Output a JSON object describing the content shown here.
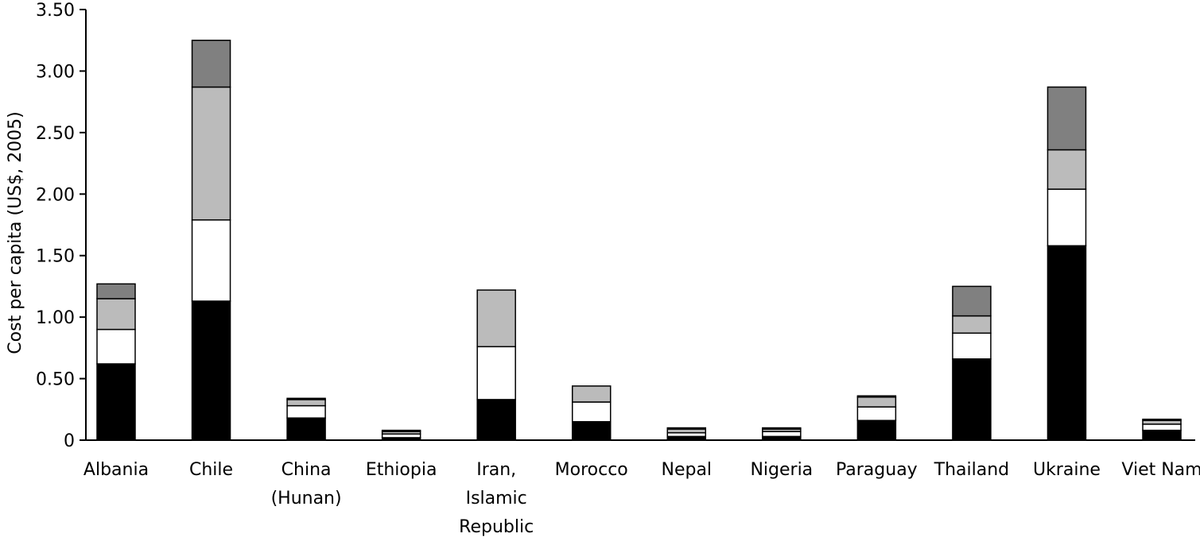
{
  "chart_data": {
    "type": "bar",
    "stacked": true,
    "title": "",
    "xlabel": "",
    "ylabel": "Cost per capita (US$, 2005)",
    "ylim": [
      0,
      3.5
    ],
    "yticks": [
      0,
      0.5,
      1.0,
      1.5,
      2.0,
      2.5,
      3.0,
      3.5
    ],
    "ytick_labels": [
      "0",
      "0.50",
      "1.00",
      "1.50",
      "2.00",
      "2.50",
      "3.00",
      "3.50"
    ],
    "legend": "none",
    "grid": false,
    "categories": [
      [
        "Albania"
      ],
      [
        "Chile"
      ],
      [
        "China",
        "(Hunan)"
      ],
      [
        "Ethiopia"
      ],
      [
        "Iran,",
        "Islamic",
        "Republic"
      ],
      [
        "Morocco"
      ],
      [
        "Nepal"
      ],
      [
        "Nigeria"
      ],
      [
        "Paraguay"
      ],
      [
        "Thailand"
      ],
      [
        "Ukraine"
      ],
      [
        "Viet Nam"
      ]
    ],
    "series": [
      {
        "color": "#000000",
        "values": [
          0.62,
          1.13,
          0.18,
          0.02,
          0.33,
          0.15,
          0.03,
          0.03,
          0.16,
          0.66,
          1.58,
          0.08
        ]
      },
      {
        "color": "#ffffff",
        "values": [
          0.28,
          0.66,
          0.1,
          0.03,
          0.43,
          0.16,
          0.03,
          0.04,
          0.11,
          0.21,
          0.46,
          0.05
        ]
      },
      {
        "color": "#bbbbbb",
        "values": [
          0.25,
          1.08,
          0.05,
          0.02,
          0.46,
          0.13,
          0.03,
          0.02,
          0.08,
          0.14,
          0.32,
          0.03
        ]
      },
      {
        "color": "#808080",
        "values": [
          0.12,
          0.38,
          0.01,
          0.01,
          0.0,
          0.0,
          0.01,
          0.01,
          0.01,
          0.24,
          0.51,
          0.01
        ]
      }
    ]
  }
}
